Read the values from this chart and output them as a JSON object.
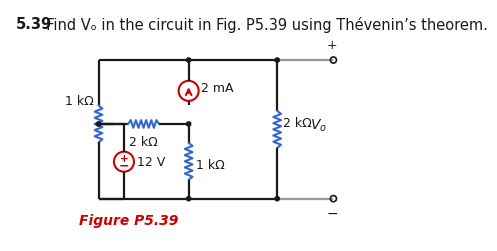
{
  "title_bold": "5.39",
  "title_rest": "  Find Vₒ in the circuit in Fig. P5.39 using Thévenin’s theorem.",
  "figure_label": "Figure P5.39",
  "background_color": "#ffffff",
  "line_color": "#1a1a1a",
  "red_color": "#cc0000",
  "blue_color": "#3366cc",
  "gray_color": "#999999",
  "title_fontsize": 10.5,
  "label_fontsize": 9
}
